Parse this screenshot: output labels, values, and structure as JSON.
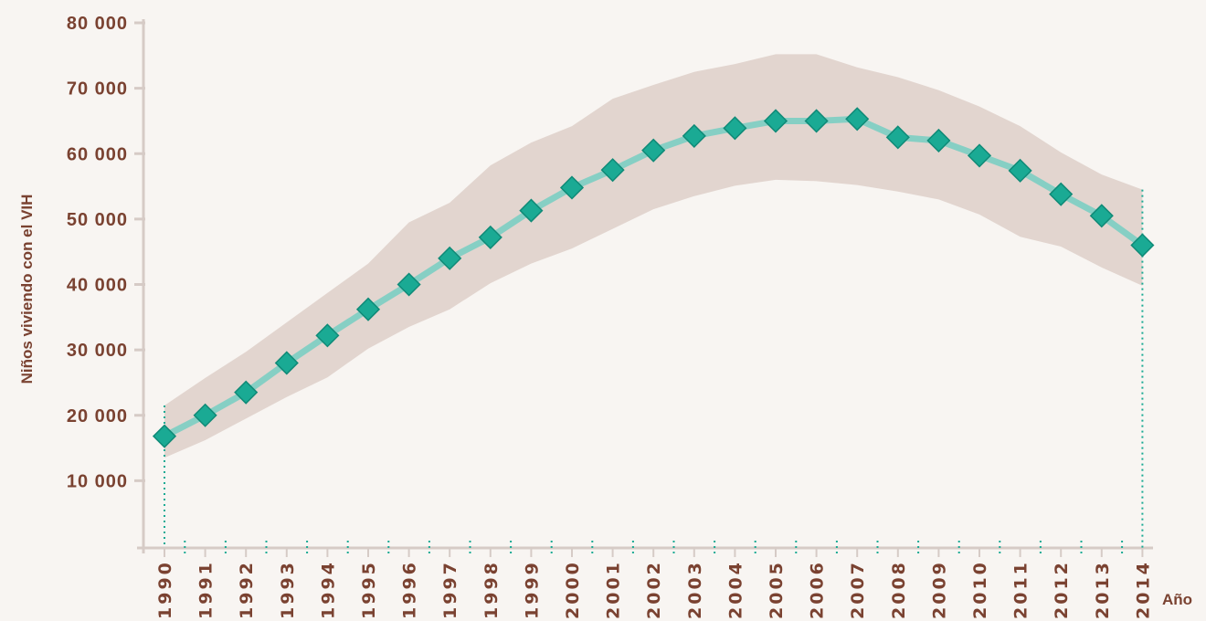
{
  "chart_data": {
    "type": "line",
    "ylabel": "Niños viviendo con el VIH",
    "xlabel": "Año",
    "ylim": [
      0,
      80000
    ],
    "yticks": [
      10000,
      20000,
      30000,
      40000,
      50000,
      60000,
      70000,
      80000
    ],
    "ytick_labels": [
      "10 000",
      "20 000",
      "30 000",
      "40 000",
      "50 000",
      "60 000",
      "70 000",
      "80 000"
    ],
    "categories": [
      "1990",
      "1991",
      "1992",
      "1993",
      "1994",
      "1995",
      "1996",
      "1997",
      "1998",
      "1999",
      "2000",
      "2001",
      "2002",
      "2003",
      "2004",
      "2005",
      "2006",
      "2007",
      "2008",
      "2009",
      "2010",
      "2011",
      "2012",
      "2013",
      "2014"
    ],
    "series": [
      {
        "values": [
          16800,
          20000,
          23500,
          28000,
          32200,
          36200,
          40000,
          44000,
          47200,
          51300,
          54800,
          57500,
          60500,
          62700,
          63900,
          65000,
          65000,
          65300,
          62500,
          62000,
          59700,
          57400,
          53800,
          50500,
          46000
        ]
      }
    ],
    "band_upper": [
      21500,
      25700,
      29700,
      34200,
      38700,
      43200,
      49500,
      52500,
      58200,
      61700,
      64200,
      68400,
      70500,
      72500,
      73700,
      75200,
      75200,
      73200,
      71700,
      69700,
      67200,
      64200,
      60200,
      56800,
      54500
    ],
    "band_lower": [
      13500,
      16200,
      19500,
      22800,
      25800,
      30200,
      33500,
      36200,
      40200,
      43200,
      45500,
      48500,
      51500,
      53500,
      55100,
      56000,
      55800,
      55200,
      54200,
      53000,
      50700,
      47300,
      45800,
      42600,
      39800
    ],
    "colors": {
      "line": "#86cfc4",
      "marker": "#1aaa94",
      "marker_edge": "#0f8a77",
      "band": "#e2d5cf",
      "axis": "#d6cbc6",
      "label": "#7a4231",
      "dotted": "#1aaa94"
    },
    "grid": false
  }
}
